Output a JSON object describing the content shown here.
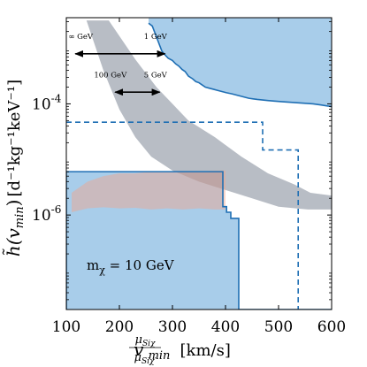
{
  "chart_data": {
    "type": "area",
    "title": "",
    "xlabel": {
      "coef_num": "μ",
      "coef_num_sub": "Siχ",
      "coef_den": "μ",
      "coef_den_sub": "Siχ′",
      "var": "v",
      "var_sub": "min",
      "units": "[km/s]"
    },
    "ylabel": {
      "var": "h̃(v",
      "var_sub": "min",
      "close": ")",
      "units": "[d⁻¹kg⁻¹keV⁻¹]"
    },
    "xlim": [
      100,
      600
    ],
    "ylim_log10": [
      -7.7,
      -2.45
    ],
    "y_log_scale": true,
    "x_ticks": [
      100,
      200,
      300,
      400,
      500,
      600
    ],
    "x_tick_labels": [
      "100",
      "200",
      "300",
      "400",
      "500",
      "600"
    ],
    "y_ticks": [
      {
        "exp": -4,
        "base": "10",
        "sup": "-4"
      },
      {
        "exp": -6,
        "base": "10",
        "sup": "-6"
      }
    ],
    "grid": false,
    "colors": {
      "excluded_fill": "#a8cdea",
      "limit_line": "#1f6fb4",
      "band_gray": "#7e8795",
      "band_orange": "#f3a58a",
      "arrow": "#000000",
      "axes": "#000000"
    },
    "series": [
      {
        "name": "",
        "style": "solid",
        "x": [
          100,
          100,
          395,
          395,
          402,
          402,
          410,
          410,
          425,
          425,
          600
        ],
        "y_log10": [
          -7.7,
          -5.22,
          -5.22,
          -5.85,
          -5.85,
          -5.95,
          -5.95,
          -6.06,
          -6.06,
          -7.7,
          -7.7
        ],
        "note": "lower boundary of solid excluded region"
      },
      {
        "name": "",
        "style": "solid",
        "x": [
          255,
          262,
          268,
          272,
          276,
          280,
          286,
          292,
          300,
          306,
          312,
          318,
          324,
          330,
          338,
          344,
          350,
          356,
          362,
          370,
          378,
          386,
          394,
          402,
          412,
          420,
          428,
          436,
          444,
          452,
          460,
          470,
          480,
          492,
          505,
          520,
          535,
          550,
          565,
          580,
          600
        ],
        "y_log10": [
          -2.55,
          -2.6,
          -2.75,
          -2.85,
          -2.95,
          -3.05,
          -3.12,
          -3.18,
          -3.22,
          -3.28,
          -3.32,
          -3.38,
          -3.42,
          -3.5,
          -3.55,
          -3.6,
          -3.62,
          -3.66,
          -3.7,
          -3.72,
          -3.74,
          -3.76,
          -3.78,
          -3.8,
          -3.82,
          -3.84,
          -3.86,
          -3.88,
          -3.9,
          -3.91,
          -3.92,
          -3.93,
          -3.94,
          -3.95,
          -3.96,
          -3.97,
          -3.98,
          -3.99,
          -4.0,
          -4.02,
          -4.05
        ],
        "note": "upper boundary of solid excluded region"
      },
      {
        "name": "",
        "style": "dashed",
        "x": [
          100,
          470,
          470,
          537,
          537
        ],
        "y_log10": [
          -4.33,
          -4.33,
          -4.83,
          -4.83,
          -7.7
        ]
      }
    ],
    "bands": [
      {
        "name": "",
        "color": "gray",
        "x_top": [
          138,
          180,
          230,
          270,
          300,
          330,
          380,
          430,
          480,
          530,
          560,
          600
        ],
        "y_top_log10": [
          -2.5,
          -2.5,
          -3.2,
          -3.7,
          -4.0,
          -4.3,
          -4.6,
          -4.95,
          -5.25,
          -5.45,
          -5.6,
          -5.65
        ],
        "x_bot": [
          600,
          555,
          500,
          450,
          400,
          350,
          300,
          260,
          230,
          200,
          170,
          138
        ],
        "y_bot_log10": [
          -5.9,
          -5.9,
          -5.85,
          -5.7,
          -5.55,
          -5.4,
          -5.2,
          -4.95,
          -4.6,
          -4.1,
          -3.4,
          -2.5
        ]
      },
      {
        "name": "",
        "color": "orange",
        "x_top": [
          110,
          140,
          170,
          200,
          230,
          260,
          290,
          320,
          350,
          380,
          400
        ],
        "y_top_log10": [
          -5.6,
          -5.4,
          -5.3,
          -5.25,
          -5.25,
          -5.22,
          -5.22,
          -5.23,
          -5.22,
          -5.2,
          -5.2
        ],
        "x_bot": [
          400,
          380,
          350,
          320,
          290,
          260,
          230,
          200,
          170,
          140,
          110
        ],
        "y_bot_log10": [
          -5.9,
          -5.9,
          -5.88,
          -5.9,
          -5.88,
          -5.9,
          -5.87,
          -5.88,
          -5.86,
          -5.88,
          -5.95
        ]
      }
    ],
    "annotations": [
      {
        "text": "∞ GeV",
        "x": 127,
        "y_log10": -2.83
      },
      {
        "text": "1 GeV",
        "x": 268,
        "y_log10": -2.83
      },
      {
        "text": "100 GeV",
        "x": 183,
        "y_log10": -3.52
      },
      {
        "text": "5 GeV",
        "x": 268,
        "y_log10": -3.52
      }
    ],
    "arrows": [
      {
        "x1": 117,
        "x2": 286,
        "y_log10": -3.1
      },
      {
        "x1": 192,
        "x2": 276,
        "y_log10": -3.79
      }
    ],
    "mass_label": {
      "prefix": "m",
      "sub": "χ",
      "text": " = 10 GeV"
    }
  }
}
